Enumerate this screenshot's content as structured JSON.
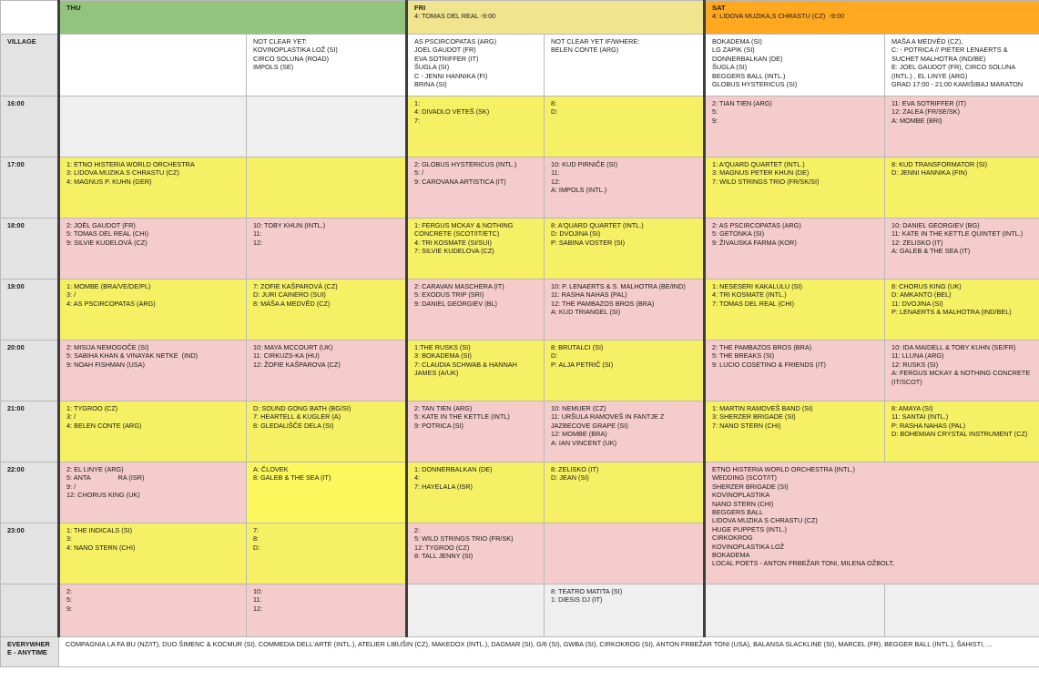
{
  "header": {
    "thu": {
      "name": "THU",
      "sub": ""
    },
    "fri": {
      "name": "FRI",
      "sub": "4: TOMAS DEL REAL -9:00"
    },
    "sat": {
      "name": "SAT",
      "sub": "4: LIDOVA MUZIKA,S CHRASTU (CZ)  -9:00"
    }
  },
  "village": {
    "label": "VILLAGE",
    "thu1": [],
    "thu2": [
      "NOT CLEAR YET:",
      "KOVINOPLASTIKA LOŽ (SI)",
      "CIRCO SOLUNA (ROAD)",
      "IMPOLS (SE)"
    ],
    "fri1": [
      "AS PSCIRCOPATAS (ARG)",
      "JOEL GAUDOT (FR)",
      "EVA SOTRIFFER (IT)",
      "ŠUGLA (SI)",
      "C - JENNI HANNIKA (FI)",
      "BRINA (SI)"
    ],
    "fri2": [
      "NOT CLEAR YET IF/WHERE:",
      "BELEN CONTE (ARG)"
    ],
    "sat1": [
      "BOKADEMA (SI)",
      "LG ZAPIK (SI)",
      "DONNERBALKAN (DE)",
      "ŠUGLA (SI)",
      "BEGGERS BALL (INTL.)",
      "GLOBUS HYSTERICUS (SI)"
    ],
    "sat2": [
      "MAŠA A MEDVĚD (CZ),",
      "C: - POTRICA // PIETER LENAERTS & SUCHET MALHOTRA (IND/BE)",
      "E: JOEL GAUDOT (FR), CIRCO SOLUNA (INTL.) , EL LINYE (ARG)",
      "GRAD 17:00 - 21:00 KAMIŠIBAJ MARATON"
    ]
  },
  "slots": [
    {
      "time": "16:00",
      "thu1": [],
      "thu2": [],
      "fri1": [
        "1:",
        "4: DIVADLO VETEŠ (SK)",
        "7:"
      ],
      "fri2": [
        "8:",
        "D:"
      ],
      "sat1": [
        "2: TIAN TIEN (ARG)",
        "5:",
        "9:"
      ],
      "sat2": [
        "11: EVA SOTRIFFER (IT)",
        "12: ZALEA (FR/SE/SK)",
        "A: MOMBE (BRI)"
      ]
    },
    {
      "time": "17:00",
      "thu1": [
        "1: ETNO HISTERIA WORLD ORCHESTRA",
        "3: LIDOVA MUZIKA S CHRASTU (CZ)",
        "4: MAGNUS P. KUHN (GER)"
      ],
      "thu2": [],
      "fri1": [
        "2: GLOBUS HYSTERICUS (INTL.)",
        "5: /",
        "9: CAROVANA ARTISTICA (IT)"
      ],
      "fri2": [
        "10: KUD PIRNIČE (SI)",
        "11:",
        "12:",
        "A: IMPOLS (INTL.)"
      ],
      "sat1": [
        "1: A'QUARD QUARTET (INTL.)",
        "3: MAGNUS PETER KHUN (DE)",
        "7: WILD STRINGS TRIO (FR/SK/SI)"
      ],
      "sat2": [
        "8: KUD TRANSFORMATOR (SI)",
        "D: JENNI HANNIKA (FIN)"
      ]
    },
    {
      "time": "18:00",
      "thu1": [
        "2: JOËL GAUDOT (FR)",
        "5: TOMAS DEL REAL (CHI)",
        "9: SILVIE KUDELOVÁ (CZ)"
      ],
      "thu2": [
        "10: TOBY KHUN (INTL.)",
        "11:",
        "12:"
      ],
      "fri1": [
        "1: FERGUS MCKAY & NOTHING CONCRETE (SCOT/IT/ETC)",
        "4: TRI KOSMATE (SI/SUI)",
        "7: SILVIE KUDELOVA (CZ)"
      ],
      "fri2": [
        "8: A'QUARD QUARTET (INTL.)",
        "D: DVOJINA (SI)",
        "P: SABINA VOSTER (SI)"
      ],
      "sat1": [
        "2: AS PSCIRCOPATAS (ARG)",
        "5: GETONKA (SI)",
        "9: ŽIVAUSKA FARMA (KOR)"
      ],
      "sat2": [
        "10: DANIEL GEORGIEV (BG)",
        "11: KATE IN THE KETTLE QUINTET (INTL.)",
        "12: ZELISKO (IT)",
        "A: GALEB & THE SEA (IT)"
      ]
    },
    {
      "time": "19:00",
      "thu1": [
        "1: MOMBE (BRA/VE/DE/PL)",
        "3: /",
        "4: AS PSCIRCOPATAS (ARG)"
      ],
      "thu2": [
        "7: ZOFIE KAŠPAROVÁ (CZ)",
        "D: JURI CAINERO (SUI)",
        "8: MÁŠA A MEDVĚD (CZ)"
      ],
      "fri1": [
        "2: CARAVAN MASCHERA (IT)",
        "5: EXODUS TRIP (SRI)",
        "9: DANIEL GEORGIEV (BL)"
      ],
      "fri2": [
        "10: P. LENAERTS & S. MALHOTRA (BE/IND)",
        "11: RASHA NAHAS (PAL)",
        "12: THE PAMBAZOS BROS (BRA)",
        "A: KUD TRIANGEL (SI)"
      ],
      "sat1": [
        "1: NESESERI KAKALULU (SI)",
        "4: TRI KOSMATE (INTL.)",
        "7: TOMAS DEL REAL (CHI)"
      ],
      "sat2": [
        "8: CHORUS KING (UK)",
        "D: AMKANTO (BEL)",
        "11: DVOJINA (SI)",
        "P: LENAERTS & MALHOTRA (IND/BEL)"
      ]
    },
    {
      "time": "20:00",
      "thu1": [
        "2: MISIJA NEMOGOČE (SI)",
        "5: SABIHA KHAN & VINAYAK NETKE  (IND)",
        "9: NOAH FISHMAN (USA)"
      ],
      "thu2": [
        "10: MAYA MCCOURT (UK)",
        "11: CIRKUZS-KA (HU)",
        "12: ŽOFIE KAŠPAROVA (CZ)"
      ],
      "fri1": [
        "1:THE RUSKS (SI)",
        "3: BOKADEMA (SI)",
        "7: CLAUDIA SCHWAB & HANNAH JAMES (A/UK)"
      ],
      "fri2": [
        "8: BRUTALCI (SI)",
        "D:",
        "P: ALJA PETRIČ (SI)"
      ],
      "sat1": [
        "2: THE PAMBAZOS BROS (BRA)",
        "5: THE BREAKS (SI)",
        "9: LUCIO COSETINO & FRIENDS (IT)"
      ],
      "sat2": [
        "10: IDA MAIDELL & TOBY KUHN (SE/FR)",
        "11: LLUNA (ARG)",
        "12: RUSKS (SI)",
        "A: FERGUS MCKAY & NOTHING CONCRETE (IT/SCOT)"
      ]
    },
    {
      "time": "21:00",
      "thu1": [
        "1: TYGROO (CZ)",
        "3: /",
        "4: BELEN CONTE (ARG)"
      ],
      "thu2": [
        "D: SOUND GONG BATH (BG/SI)",
        "7: HEARTELL & KUGLER (A)",
        "8: GLEDALIŠČE DELA (SI)"
      ],
      "fri1": [
        "2: TAN TIEN (ARG)",
        "5: KATE IN THE KETTLE (INTL)",
        "9: POTRICA (SI)"
      ],
      "fri2": [
        "10: NEMUER (CZ)",
        "11: URŠULA RAMOVEŠ IN FANTJE Z JAZBECOVE GRAPE (SI)",
        "12: MOMBE (BRA)",
        "A: IAN VINCENT (UK)"
      ],
      "sat1": [
        "1: MARTIN RAMOVEŠ BAND (SI)",
        "3: SHERZER BRIGADE (SI)",
        "7: NANO STERN (CHI)"
      ],
      "sat2": [
        "8: AMAYA (SI)",
        "11: SANTAI (INTL.)",
        "P: RASHA NAHAS (PAL)",
        "D: BOHEMIAN CRYSTAL INSTRUMENT (CZ)"
      ]
    },
    {
      "time": "22:00",
      "thu1": [
        "2: EL LINYE (ARG)",
        "5: ANTA               RA (ISR)",
        "9: /",
        "12: CHORUS KING (UK)"
      ],
      "thu2": [
        "A: ČLOVEK",
        "8: GALEB & THE SEA (IT)"
      ],
      "fri1": [
        "1: DONNERBALKAN (DE)",
        "4:",
        "7: HAYELALA (ISR)"
      ],
      "fri2": [
        "8: ZELISKO (IT)",
        "D: JEAN (SI)"
      ],
      "sat": [
        "ETNO HISTERIA WORLD ORCHESTRA (INTL.)",
        "WEDDING (SCOT/IT)",
        "SHERZER BRIGADE (SI)",
        "KOVINOPLASTIKA",
        "NANO STERN (CHI)",
        "BEGGERS BALL",
        "LIDOVA MUZIKA S CHRASTU (CZ)",
        "HUGE PUPPETS (INTL.)",
        "CIRKOKROG",
        "KOVINOPLASTIKA LOŽ",
        "BOKADEMA",
        "LOCAL POETS - ANTON FRBEŽAR TONI, MILENA OŽBOLT,"
      ]
    },
    {
      "time": "23:00",
      "thu1": [
        "1: THE INDICALS (SI)",
        "3:",
        "4: NANO STERN (CHI)"
      ],
      "thu2": [
        "7:",
        "8:",
        "D:"
      ],
      "fri1": [
        "2:",
        "5: WILD STRINGS TRIO (FR/SK)",
        "12: TYGROO (CZ)",
        "8: TALL JENNY (SI)"
      ],
      "fri2": []
    },
    {
      "time": "",
      "thu1": [
        "2:",
        "5:",
        "9:"
      ],
      "thu2": [
        "10:",
        "11:",
        "12:"
      ],
      "fri1": [],
      "fri2": [
        "8: TEATRO MATITA (SI)",
        "1: DIESIS DJ (IT)"
      ],
      "sat1": [],
      "sat2": []
    }
  ],
  "everywhere": {
    "label": "EVERYWHER E - ANYTIME",
    "text": "COMPAGNIA LA FA BU (NZ/IT), DUO ŠIMENC & KOCMUR (SI), COMMEDIA DELL'ARTE (INTL.), ATELIER LIBUŠIN (CZ), MAKEDOX (INTL.), DAGMAR (SI), G/6 (SI), GWBA (SI), CIRKOKROG (SI), ANTON FRBEŽAR TONI (USA), BALANSA SLACKLINE (SI), MARCEL (FR), BEGGER BALL (INTL.), ŠAHISTI, ..."
  },
  "colors": {
    "thu_header": "#93c47d",
    "fri_header": "#f0e48f",
    "sat_header": "#ffa820",
    "yellow": "#f6f064",
    "pink": "#f4cccc",
    "grey": "#efefef"
  }
}
